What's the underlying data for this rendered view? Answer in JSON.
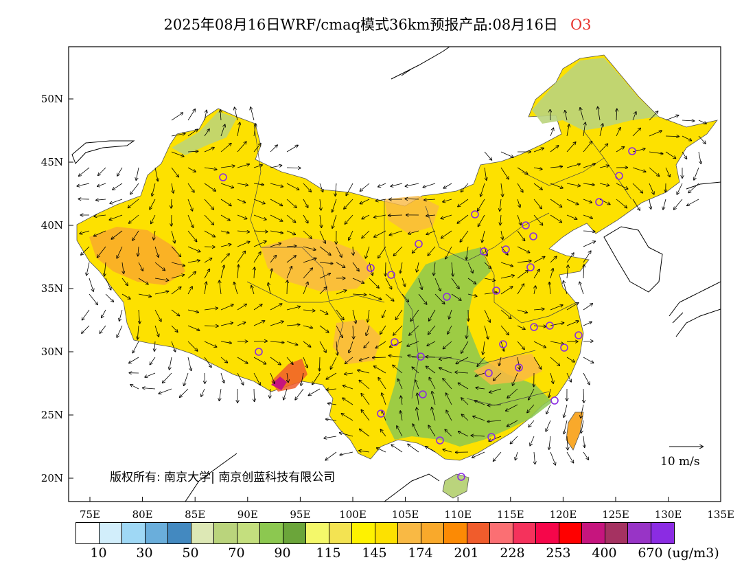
{
  "title": {
    "text": "2025年08月16日WRF/cmaq模式36km预报产品:08月16日",
    "pollutant": "O3"
  },
  "colors": {
    "palette": [
      "#ffffff",
      "#d2eefb",
      "#9fd8f5",
      "#6aaedb",
      "#4389c0",
      "#dde8b5",
      "#bad47c",
      "#c4df7e",
      "#8cc850",
      "#6ba53a",
      "#f4f86a",
      "#f3e352",
      "#fef200",
      "#fde100",
      "#f9b944",
      "#f9a92b",
      "#fc8a04",
      "#f05c2c",
      "#fb6f73",
      "#f5325c",
      "#f6064a",
      "#ff0000",
      "#c6157e",
      "#a53261",
      "#9834c6",
      "#8b2ce3"
    ]
  },
  "map": {
    "lat_labels": [
      "50N",
      "45N",
      "40N",
      "35N",
      "30N",
      "25N",
      "20N"
    ],
    "lon_labels": [
      "75E",
      "80E",
      "85E",
      "90E",
      "95E",
      "100E",
      "105E",
      "110E",
      "115E",
      "120E",
      "125E",
      "130E",
      "135E"
    ]
  },
  "colorbar": {
    "labels": [
      "10",
      "30",
      "50",
      "70",
      "90",
      "115",
      "145",
      "174",
      "201",
      "228",
      "253",
      "400",
      "670"
    ],
    "unit": "(ug/m3)"
  },
  "copyright": "版权所有: 南京大学| 南京创蓝科技有限公司",
  "wind_scale_label": "10  m/s"
}
